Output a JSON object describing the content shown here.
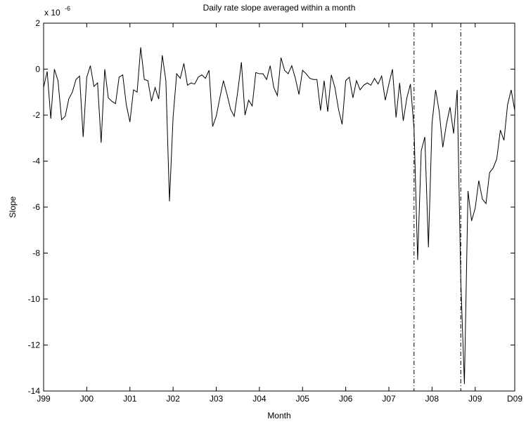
{
  "chart_data": {
    "type": "line",
    "title": "Daily rate slope averaged within a month",
    "x_label": "Month",
    "y_label": "Slope",
    "y_multiplier": {
      "base": "x 10",
      "exponent": "-6"
    },
    "color": "#000000",
    "x": [
      0,
      1,
      2,
      3,
      4,
      5,
      6,
      7,
      8,
      9,
      10,
      11,
      12,
      13,
      14,
      15,
      16,
      17,
      18,
      19,
      20,
      21,
      22,
      23,
      24,
      25,
      26,
      27,
      28,
      29,
      30,
      31,
      32,
      33,
      34,
      35,
      36,
      37,
      38,
      39,
      40,
      41,
      42,
      43,
      44,
      45,
      46,
      47,
      48,
      49,
      50,
      51,
      52,
      53,
      54,
      55,
      56,
      57,
      58,
      59,
      60,
      61,
      62,
      63,
      64,
      65,
      66,
      67,
      68,
      69,
      70,
      71,
      72,
      73,
      74,
      75,
      76,
      77,
      78,
      79,
      80,
      81,
      82,
      83,
      84,
      85,
      86,
      87,
      88,
      89,
      90,
      91,
      92,
      93,
      94,
      95,
      96,
      97,
      98,
      99,
      100,
      101,
      102,
      103,
      104,
      105,
      106,
      107,
      108,
      109,
      110,
      111,
      112,
      113,
      114,
      115,
      116,
      117,
      118,
      119,
      120,
      121,
      122,
      123,
      124,
      125,
      126,
      127,
      128,
      129,
      130,
      131
    ],
    "values": [
      -0.8,
      -0.1,
      -2.15,
      0,
      -0.5,
      -2.2,
      -2.05,
      -1.3,
      -1.0,
      -0.45,
      -0.3,
      -2.95,
      -0.35,
      0.15,
      -0.75,
      -0.6,
      -3.2,
      0.0,
      -1.25,
      -1.4,
      -1.5,
      -0.35,
      -0.25,
      -1.55,
      -2.3,
      -0.9,
      -1.0,
      0.95,
      -0.45,
      -0.5,
      -1.4,
      -0.8,
      -1.3,
      0.6,
      -0.5,
      -5.75,
      -2.1,
      -0.2,
      -0.4,
      0.25,
      -0.7,
      -0.6,
      -0.65,
      -0.35,
      -0.25,
      -0.4,
      -0.05,
      -2.5,
      -2.05,
      -1.25,
      -0.5,
      -1.1,
      -1.75,
      -2.05,
      -0.95,
      0.3,
      -2.0,
      -1.35,
      -1.6,
      -0.15,
      -0.2,
      -0.2,
      -0.45,
      0.15,
      -0.8,
      -1.15,
      0.5,
      -0.05,
      -0.2,
      0.15,
      -0.4,
      -1.1,
      -0.05,
      -0.2,
      -0.4,
      -0.45,
      -0.45,
      -1.8,
      -0.5,
      -1.85,
      -0.25,
      -0.8,
      -1.75,
      -2.4,
      -0.5,
      -0.35,
      -1.25,
      -0.5,
      -0.9,
      -0.7,
      -0.6,
      -0.7,
      -0.4,
      -0.65,
      -0.3,
      -1.35,
      -0.65,
      0.0,
      -2.1,
      -0.6,
      -2.25,
      -1.25,
      -0.65,
      -2.6,
      -8.3,
      -3.55,
      -2.95,
      -7.75,
      -2.35,
      -0.9,
      -1.85,
      -3.4,
      -2.4,
      -1.65,
      -2.8,
      -0.9,
      -9.2,
      -13.7,
      -5.3,
      -6.6,
      -6.05,
      -4.85,
      -5.65,
      -5.85,
      -4.5,
      -4.3,
      -3.9,
      -2.65,
      -3.1,
      -1.55,
      -0.9,
      -1.8
    ],
    "vlines": {
      "x": [
        103,
        116
      ],
      "style": "dashdot"
    },
    "xlim": [
      0,
      131
    ],
    "xticks": [
      {
        "value": 0,
        "label": "J99"
      },
      {
        "value": 12,
        "label": "J00"
      },
      {
        "value": 24,
        "label": "J01"
      },
      {
        "value": 36,
        "label": "J02"
      },
      {
        "value": 48,
        "label": "J03"
      },
      {
        "value": 60,
        "label": "J04"
      },
      {
        "value": 72,
        "label": "J05"
      },
      {
        "value": 84,
        "label": "J06"
      },
      {
        "value": 96,
        "label": "J07"
      },
      {
        "value": 108,
        "label": "J08"
      },
      {
        "value": 120,
        "label": "J09"
      },
      {
        "value": 131,
        "label": "D09"
      }
    ],
    "ylim": [
      -14,
      2
    ],
    "yticks": [
      -14,
      -12,
      -10,
      -8,
      -6,
      -4,
      -2,
      0,
      2
    ]
  }
}
